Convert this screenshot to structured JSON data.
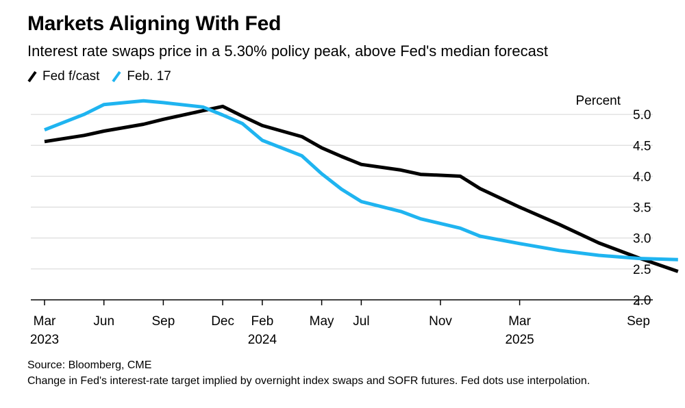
{
  "title": "Markets Aligning With Fed",
  "subtitle": "Interest rate swaps price in a 5.30% policy peak, above Fed's median forecast",
  "source": "Source: Bloomberg, CME",
  "footnote": "Change in Fed's interest-rate target implied by overnight index swaps and SOFR futures. Fed dots use interpolation.",
  "chart_data": {
    "type": "line",
    "unit_label": "Percent",
    "ylim": [
      2.0,
      5.0
    ],
    "yticks": [
      "5.0",
      "4.5",
      "4.0",
      "3.5",
      "3.0",
      "2.5",
      "2.0"
    ],
    "ytick_values": [
      5.0,
      4.5,
      4.0,
      3.5,
      3.0,
      2.5,
      2.0
    ],
    "x_axis": {
      "start": "2023-03",
      "end": "2025-11",
      "ticks": [
        {
          "month": "Mar",
          "year": "2023",
          "date": "2023-03"
        },
        {
          "month": "Jun",
          "year": "",
          "date": "2023-06"
        },
        {
          "month": "Sep",
          "year": "",
          "date": "2023-09"
        },
        {
          "month": "Dec",
          "year": "",
          "date": "2023-12"
        },
        {
          "month": "Feb",
          "year": "2024",
          "date": "2024-02"
        },
        {
          "month": "May",
          "year": "",
          "date": "2024-05"
        },
        {
          "month": "Jul",
          "year": "",
          "date": "2024-07"
        },
        {
          "month": "Nov",
          "year": "",
          "date": "2024-11"
        },
        {
          "month": "Mar",
          "year": "2025",
          "date": "2025-03"
        },
        {
          "month": "Sep",
          "year": "",
          "date": "2025-09"
        }
      ]
    },
    "grid": true,
    "legend_position": "top-left",
    "series": [
      {
        "name": "Fed f/cast",
        "color": "#000000",
        "points": [
          [
            "2023-03",
            4.56
          ],
          [
            "2023-05",
            4.66
          ],
          [
            "2023-06",
            4.73
          ],
          [
            "2023-08",
            4.84
          ],
          [
            "2023-09",
            4.92
          ],
          [
            "2023-11",
            5.06
          ],
          [
            "2023-12",
            5.13
          ],
          [
            "2024-01",
            4.97
          ],
          [
            "2024-02",
            4.82
          ],
          [
            "2024-04",
            4.64
          ],
          [
            "2024-05",
            4.46
          ],
          [
            "2024-06",
            4.32
          ],
          [
            "2024-07",
            4.19
          ],
          [
            "2024-09",
            4.1
          ],
          [
            "2024-10",
            4.03
          ],
          [
            "2024-12",
            4.0
          ],
          [
            "2025-01",
            3.8
          ],
          [
            "2025-03",
            3.5
          ],
          [
            "2025-05",
            3.22
          ],
          [
            "2025-07",
            2.92
          ],
          [
            "2025-09",
            2.68
          ],
          [
            "2025-11",
            2.46
          ]
        ]
      },
      {
        "name": "Feb. 17",
        "color": "#1fb4f0",
        "points": [
          [
            "2023-03",
            4.75
          ],
          [
            "2023-05",
            5.0
          ],
          [
            "2023-06",
            5.16
          ],
          [
            "2023-08",
            5.22
          ],
          [
            "2023-09",
            5.19
          ],
          [
            "2023-11",
            5.12
          ],
          [
            "2023-12",
            4.99
          ],
          [
            "2024-01",
            4.85
          ],
          [
            "2024-02",
            4.58
          ],
          [
            "2024-04",
            4.33
          ],
          [
            "2024-05",
            4.04
          ],
          [
            "2024-06",
            3.79
          ],
          [
            "2024-07",
            3.59
          ],
          [
            "2024-09",
            3.43
          ],
          [
            "2024-10",
            3.31
          ],
          [
            "2024-12",
            3.16
          ],
          [
            "2025-01",
            3.03
          ],
          [
            "2025-03",
            2.91
          ],
          [
            "2025-05",
            2.8
          ],
          [
            "2025-07",
            2.72
          ],
          [
            "2025-09",
            2.67
          ],
          [
            "2025-11",
            2.65
          ]
        ]
      }
    ]
  }
}
